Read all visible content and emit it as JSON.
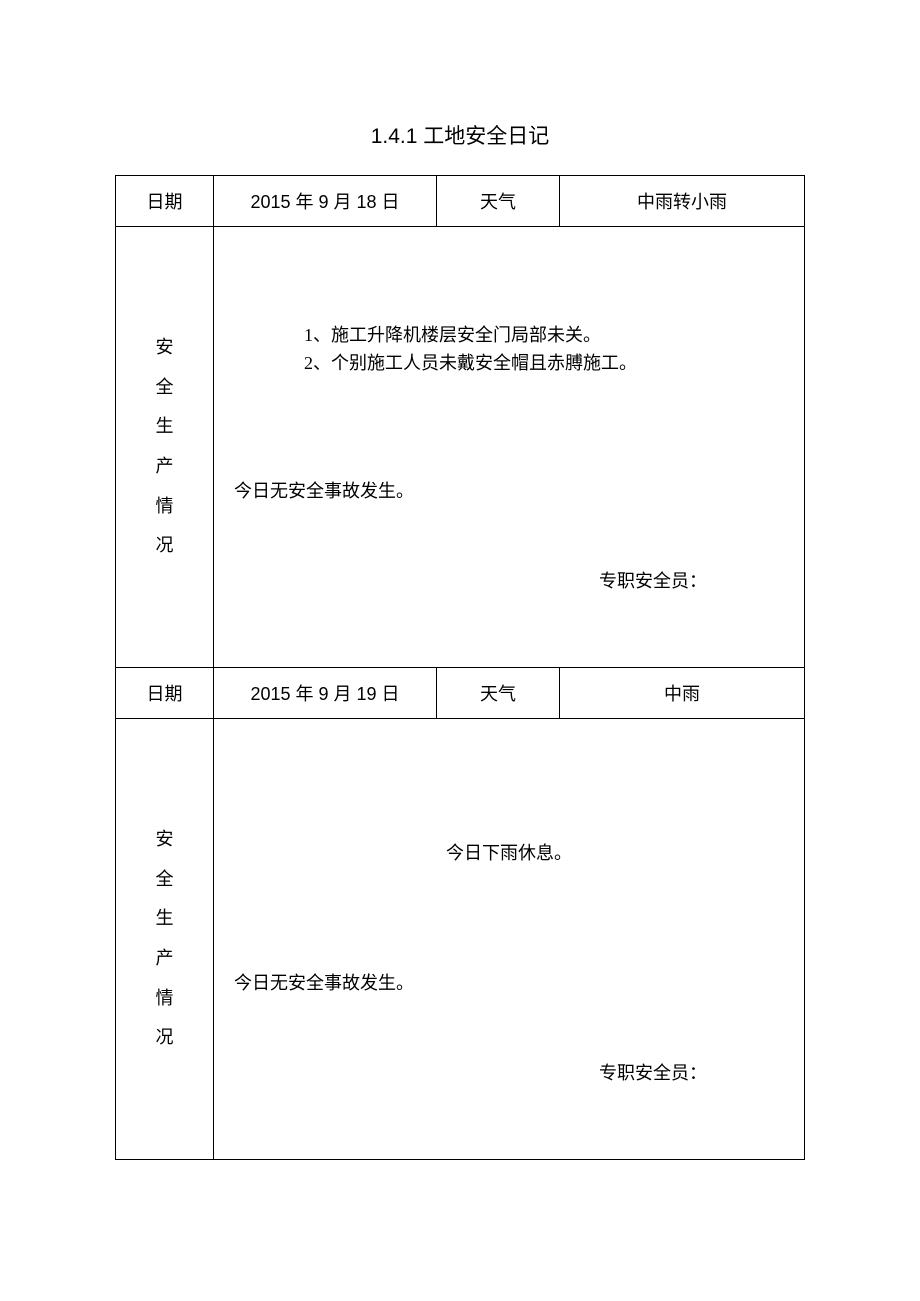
{
  "title_prefix": "1.4.1",
  "title_text": "工地安全日记",
  "labels": {
    "date": "日期",
    "weather": "天气",
    "side": "安全生产情况",
    "officer": "专职安全员："
  },
  "entries": [
    {
      "date": "2015 年 9 月 18 日",
      "weather": "中雨转小雨",
      "notes": [
        "1、施工升降机楼层安全门局部未关。",
        "2、个别施工人员未戴安全帽且赤膊施工。"
      ],
      "notes_centered": false,
      "no_accident": "今日无安全事故发生。"
    },
    {
      "date": "2015 年 9 月 19 日",
      "weather": "中雨",
      "notes": [
        "今日下雨休息。"
      ],
      "notes_centered": true,
      "no_accident": "今日无安全事故发生。"
    }
  ]
}
